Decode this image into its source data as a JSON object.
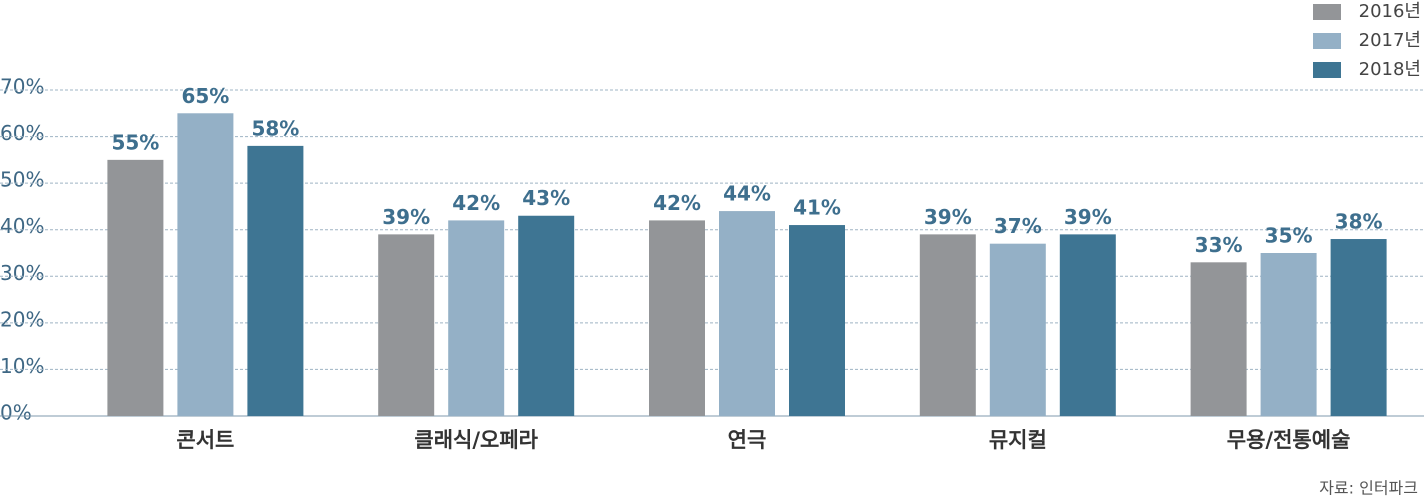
{
  "chart_data": {
    "type": "bar",
    "categories": [
      "콘서트",
      "클래식/오페라",
      "연극",
      "뮤지컬",
      "무용/전통예술"
    ],
    "series": [
      {
        "name": "2016년",
        "color": "#939598",
        "values": [
          55,
          39,
          42,
          39,
          33
        ],
        "value_labels": [
          "55%",
          "39%",
          "42%",
          "39%",
          "33%"
        ]
      },
      {
        "name": "2017년",
        "color": "#94b0c6",
        "values": [
          65,
          42,
          44,
          37,
          35
        ],
        "value_labels": [
          "65%",
          "42%",
          "44%",
          "37%",
          "35%"
        ]
      },
      {
        "name": "2018년",
        "color": "#3e7593",
        "values": [
          58,
          43,
          41,
          39,
          38
        ],
        "value_labels": [
          "58%",
          "43%",
          "41%",
          "39%",
          "38%"
        ]
      }
    ],
    "ylim": [
      0,
      70
    ],
    "yticks": [
      {
        "value": 0,
        "label": "0%"
      },
      {
        "value": 10,
        "label": "10%"
      },
      {
        "value": 20,
        "label": "20%"
      },
      {
        "value": 30,
        "label": "30%"
      },
      {
        "value": 40,
        "label": "40%"
      },
      {
        "value": 50,
        "label": "50%"
      },
      {
        "value": 60,
        "label": "60%"
      },
      {
        "value": 70,
        "label": "70%"
      }
    ],
    "grid": true,
    "legend": "top-right",
    "source": "자료: 인터파크"
  }
}
